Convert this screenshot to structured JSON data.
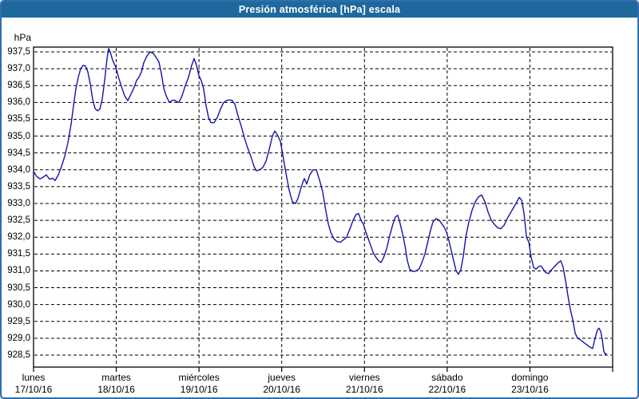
{
  "window": {
    "title": "Presión atmosférica [hPa] escala"
  },
  "colors": {
    "title_bar_bg": "#1E689E",
    "title_text": "#FFFFFF",
    "frame_border": "#2E6FAE",
    "line": "#1414AA",
    "grid": "#000000",
    "background": "#FFFFFF",
    "label_text": "#000000"
  },
  "chart_data": {
    "type": "line",
    "title": "Presión atmosférica [hPa] escala",
    "ylabel": "hPa",
    "ylim": [
      928.5,
      937.5
    ],
    "y_tick_step": 0.5,
    "grid": true,
    "legend": "none",
    "y_tick_labels": [
      "937,5",
      "937,0",
      "936,5",
      "936,0",
      "935,5",
      "935,0",
      "934,5",
      "934,0",
      "933,5",
      "933,0",
      "932,5",
      "932,0",
      "931,5",
      "931,0",
      "930,5",
      "930,0",
      "929,5",
      "929,0",
      "928,5"
    ],
    "x_axis": {
      "unit": "days",
      "range_days": [
        0,
        7
      ],
      "days": [
        {
          "name": "lunes",
          "date": "17/10/16"
        },
        {
          "name": "martes",
          "date": "18/10/16"
        },
        {
          "name": "miércoles",
          "date": "19/10/16"
        },
        {
          "name": "jueves",
          "date": "20/10/16"
        },
        {
          "name": "viernes",
          "date": "21/10/16"
        },
        {
          "name": "sábado",
          "date": "22/10/16"
        },
        {
          "name": "domingo",
          "date": "23/10/16"
        }
      ]
    },
    "series": [
      {
        "name": "Presión atmosférica [hPa]",
        "unit": "hPa",
        "points": [
          [
            0.0,
            933.95
          ],
          [
            0.039,
            933.8
          ],
          [
            0.077,
            933.73
          ],
          [
            0.116,
            933.78
          ],
          [
            0.154,
            933.85
          ],
          [
            0.193,
            933.72
          ],
          [
            0.232,
            933.75
          ],
          [
            0.261,
            933.68
          ],
          [
            0.299,
            933.85
          ],
          [
            0.338,
            934.1
          ],
          [
            0.377,
            934.4
          ],
          [
            0.415,
            934.8
          ],
          [
            0.454,
            935.35
          ],
          [
            0.483,
            935.9
          ],
          [
            0.512,
            936.4
          ],
          [
            0.541,
            936.75
          ],
          [
            0.57,
            937.0
          ],
          [
            0.599,
            937.1
          ],
          [
            0.628,
            937.08
          ],
          [
            0.657,
            936.9
          ],
          [
            0.686,
            936.55
          ],
          [
            0.714,
            936.1
          ],
          [
            0.743,
            935.82
          ],
          [
            0.772,
            935.75
          ],
          [
            0.801,
            935.8
          ],
          [
            0.83,
            936.1
          ],
          [
            0.859,
            936.65
          ],
          [
            0.888,
            937.3
          ],
          [
            0.908,
            937.6
          ],
          [
            0.927,
            937.5
          ],
          [
            0.956,
            937.25
          ],
          [
            0.994,
            937.05
          ],
          [
            1.033,
            936.7
          ],
          [
            1.072,
            936.4
          ],
          [
            1.101,
            936.2
          ],
          [
            1.139,
            936.05
          ],
          [
            1.178,
            936.25
          ],
          [
            1.217,
            936.45
          ],
          [
            1.246,
            936.65
          ],
          [
            1.274,
            936.75
          ],
          [
            1.303,
            936.9
          ],
          [
            1.332,
            937.18
          ],
          [
            1.371,
            937.38
          ],
          [
            1.41,
            937.5
          ],
          [
            1.448,
            937.45
          ],
          [
            1.477,
            937.35
          ],
          [
            1.516,
            937.2
          ],
          [
            1.545,
            936.86
          ],
          [
            1.574,
            936.42
          ],
          [
            1.603,
            936.2
          ],
          [
            1.641,
            936.0
          ],
          [
            1.67,
            936.05
          ],
          [
            1.699,
            936.07
          ],
          [
            1.728,
            936.03
          ],
          [
            1.757,
            936.0
          ],
          [
            1.796,
            936.2
          ],
          [
            1.834,
            936.5
          ],
          [
            1.873,
            936.75
          ],
          [
            1.912,
            937.1
          ],
          [
            1.941,
            937.3
          ],
          [
            1.97,
            937.1
          ],
          [
            1.999,
            936.8
          ],
          [
            2.028,
            936.65
          ],
          [
            2.057,
            936.4
          ],
          [
            2.086,
            935.9
          ],
          [
            2.115,
            935.55
          ],
          [
            2.143,
            935.4
          ],
          [
            2.182,
            935.4
          ],
          [
            2.221,
            935.55
          ],
          [
            2.259,
            935.8
          ],
          [
            2.298,
            936.0
          ],
          [
            2.346,
            936.07
          ],
          [
            2.394,
            936.07
          ],
          [
            2.433,
            935.95
          ],
          [
            2.472,
            935.6
          ],
          [
            2.51,
            935.3
          ],
          [
            2.549,
            934.95
          ],
          [
            2.588,
            934.65
          ],
          [
            2.626,
            934.4
          ],
          [
            2.665,
            934.1
          ],
          [
            2.694,
            933.97
          ],
          [
            2.732,
            934.0
          ],
          [
            2.771,
            934.07
          ],
          [
            2.81,
            934.25
          ],
          [
            2.848,
            934.6
          ],
          [
            2.887,
            935.0
          ],
          [
            2.916,
            935.15
          ],
          [
            2.945,
            935.05
          ],
          [
            2.983,
            934.85
          ],
          [
            3.012,
            934.45
          ],
          [
            3.051,
            933.9
          ],
          [
            3.09,
            933.4
          ],
          [
            3.128,
            933.05
          ],
          [
            3.167,
            933.0
          ],
          [
            3.196,
            933.15
          ],
          [
            3.225,
            933.4
          ],
          [
            3.254,
            933.62
          ],
          [
            3.273,
            933.74
          ],
          [
            3.302,
            933.58
          ],
          [
            3.341,
            933.86
          ],
          [
            3.379,
            934.0
          ],
          [
            3.418,
            934.0
          ],
          [
            3.457,
            933.7
          ],
          [
            3.495,
            933.35
          ],
          [
            3.524,
            932.9
          ],
          [
            3.563,
            932.4
          ],
          [
            3.592,
            932.15
          ],
          [
            3.63,
            931.95
          ],
          [
            3.669,
            931.87
          ],
          [
            3.708,
            931.85
          ],
          [
            3.746,
            931.92
          ],
          [
            3.785,
            932.0
          ],
          [
            3.824,
            932.25
          ],
          [
            3.862,
            932.5
          ],
          [
            3.901,
            932.68
          ],
          [
            3.93,
            932.7
          ],
          [
            3.959,
            932.5
          ],
          [
            3.988,
            932.38
          ],
          [
            4.017,
            932.15
          ],
          [
            4.046,
            931.95
          ],
          [
            4.075,
            931.75
          ],
          [
            4.104,
            931.55
          ],
          [
            4.133,
            931.42
          ],
          [
            4.171,
            931.3
          ],
          [
            4.2,
            931.25
          ],
          [
            4.229,
            931.38
          ],
          [
            4.268,
            931.65
          ],
          [
            4.306,
            932.05
          ],
          [
            4.345,
            932.4
          ],
          [
            4.374,
            932.6
          ],
          [
            4.403,
            932.65
          ],
          [
            4.432,
            932.4
          ],
          [
            4.461,
            932.1
          ],
          [
            4.49,
            931.75
          ],
          [
            4.519,
            931.3
          ],
          [
            4.548,
            931.05
          ],
          [
            4.586,
            930.98
          ],
          [
            4.625,
            931.0
          ],
          [
            4.664,
            931.07
          ],
          [
            4.702,
            931.3
          ],
          [
            4.731,
            931.5
          ],
          [
            4.76,
            931.8
          ],
          [
            4.799,
            932.2
          ],
          [
            4.828,
            932.45
          ],
          [
            4.866,
            932.55
          ],
          [
            4.905,
            932.5
          ],
          [
            4.934,
            932.4
          ],
          [
            4.963,
            932.3
          ],
          [
            4.992,
            932.15
          ],
          [
            5.021,
            931.9
          ],
          [
            5.05,
            931.6
          ],
          [
            5.079,
            931.3
          ],
          [
            5.108,
            931.0
          ],
          [
            5.137,
            930.9
          ],
          [
            5.166,
            931.05
          ],
          [
            5.195,
            931.45
          ],
          [
            5.224,
            932.0
          ],
          [
            5.262,
            932.45
          ],
          [
            5.301,
            932.8
          ],
          [
            5.34,
            933.05
          ],
          [
            5.378,
            933.2
          ],
          [
            5.417,
            933.25
          ],
          [
            5.456,
            933.05
          ],
          [
            5.494,
            932.75
          ],
          [
            5.533,
            932.5
          ],
          [
            5.571,
            932.38
          ],
          [
            5.61,
            932.28
          ],
          [
            5.649,
            932.25
          ],
          [
            5.687,
            932.35
          ],
          [
            5.726,
            932.55
          ],
          [
            5.765,
            932.72
          ],
          [
            5.803,
            932.88
          ],
          [
            5.842,
            933.05
          ],
          [
            5.871,
            933.18
          ],
          [
            5.9,
            933.1
          ],
          [
            5.929,
            932.7
          ],
          [
            5.958,
            932.0
          ],
          [
            5.987,
            931.85
          ],
          [
            6.016,
            931.4
          ],
          [
            6.045,
            931.1
          ],
          [
            6.074,
            931.05
          ],
          [
            6.103,
            931.12
          ],
          [
            6.132,
            931.15
          ],
          [
            6.161,
            931.05
          ],
          [
            6.19,
            930.95
          ],
          [
            6.228,
            930.92
          ],
          [
            6.267,
            931.05
          ],
          [
            6.306,
            931.15
          ],
          [
            6.344,
            931.25
          ],
          [
            6.373,
            931.3
          ],
          [
            6.402,
            931.1
          ],
          [
            6.431,
            930.7
          ],
          [
            6.46,
            930.25
          ],
          [
            6.489,
            929.85
          ],
          [
            6.518,
            929.55
          ],
          [
            6.547,
            929.15
          ],
          [
            6.576,
            929.0
          ],
          [
            6.614,
            928.95
          ],
          [
            6.653,
            928.87
          ],
          [
            6.692,
            928.8
          ],
          [
            6.73,
            928.73
          ],
          [
            6.759,
            928.7
          ],
          [
            6.788,
            929.0
          ],
          [
            6.817,
            929.25
          ],
          [
            6.836,
            929.3
          ],
          [
            6.856,
            929.2
          ],
          [
            6.875,
            928.95
          ],
          [
            6.894,
            928.6
          ],
          [
            6.913,
            928.52
          ],
          [
            6.923,
            928.55
          ]
        ]
      }
    ]
  }
}
